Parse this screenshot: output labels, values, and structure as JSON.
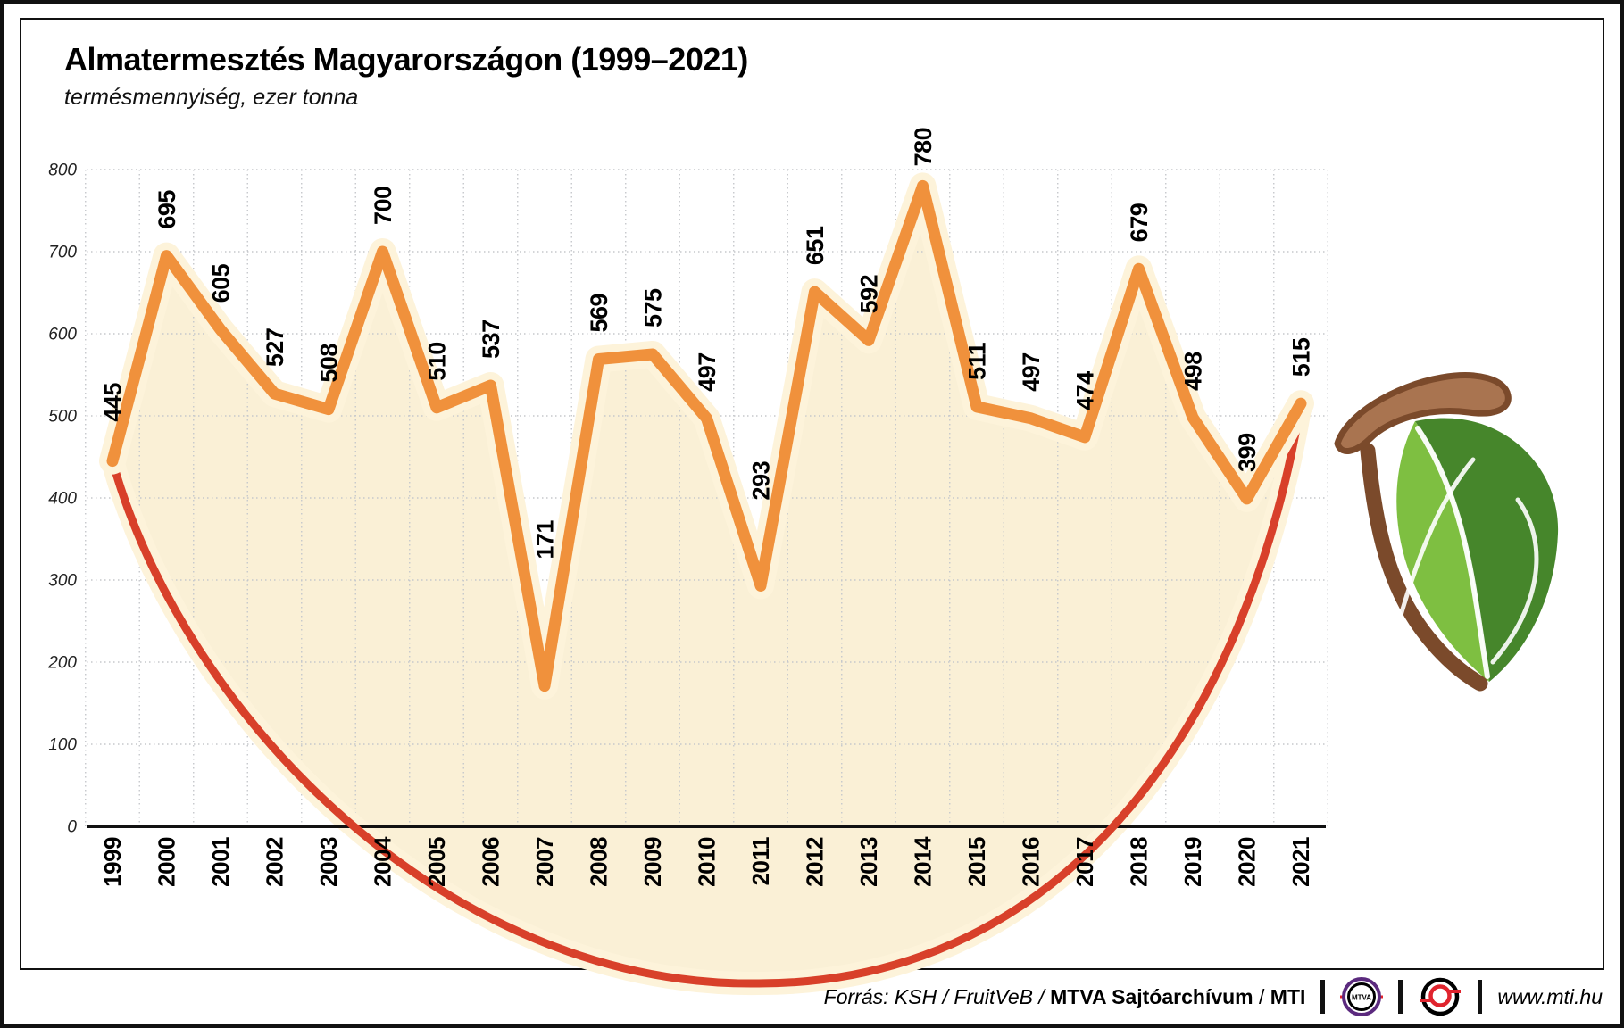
{
  "title": "Almatermesztés Magyarországon (1999–2021)",
  "subtitle": "termésmennyiség, ezer tonna",
  "chart_data": {
    "type": "line",
    "title": "Almatermesztés Magyarországon (1999–2021)",
    "subtitle": "termésmennyiség, ezer tonna",
    "x": [
      1999,
      2000,
      2001,
      2002,
      2003,
      2004,
      2005,
      2006,
      2007,
      2008,
      2009,
      2010,
      2011,
      2012,
      2013,
      2014,
      2015,
      2016,
      2017,
      2018,
      2019,
      2020,
      2021
    ],
    "values": [
      445,
      695,
      605,
      527,
      508,
      700,
      510,
      537,
      171,
      569,
      575,
      497,
      293,
      651,
      592,
      780,
      511,
      497,
      474,
      679,
      498,
      399,
      515
    ],
    "ylim": [
      0,
      800
    ],
    "yticks": [
      0,
      100,
      200,
      300,
      400,
      500,
      600,
      700,
      800
    ],
    "grid": "dotted",
    "legend": "none",
    "value_labels_rotated": true,
    "line_color": "#F0913C",
    "line_halo_color": "#FDF3DA",
    "area_color": "#FAF0D6",
    "apple_skin_color": "#D8402A",
    "axis_color": "#111111",
    "grid_color": "#C6C8CC"
  },
  "decor": {
    "stem_fill": "#A97450",
    "stem_outline": "#7B4A2B",
    "leaf_light": "#7EBF41",
    "leaf_dark": "#46862B"
  },
  "footer": {
    "source_prefix": "Forrás: KSH / FruitVeB / ",
    "source_bold": "MTVA Sajtóarchívum",
    "source_mid": " / ",
    "source_bold2": "MTI",
    "mtva_label": "MTVA",
    "website": "www.mti.hu",
    "mtva_purple": "#5B2A7E",
    "logo_red": "#E0242E"
  }
}
